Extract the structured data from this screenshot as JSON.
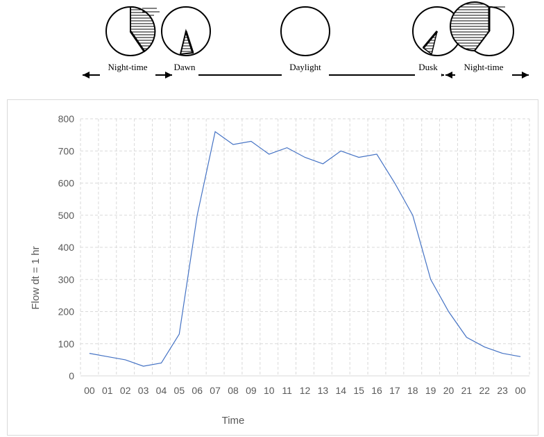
{
  "diagram": {
    "phases": [
      {
        "label": "Night-time"
      },
      {
        "label": "Dawn"
      },
      {
        "label": "Daylight"
      },
      {
        "label": "Dusk"
      },
      {
        "label": "Night-time"
      }
    ]
  },
  "chart_data": {
    "type": "line",
    "title": "",
    "xlabel": "Time",
    "ylabel": "Flow dt = 1 hr",
    "categories": [
      "00",
      "01",
      "02",
      "03",
      "04",
      "05",
      "06",
      "07",
      "08",
      "09",
      "10",
      "11",
      "12",
      "13",
      "14",
      "15",
      "16",
      "17",
      "18",
      "19",
      "20",
      "21",
      "22",
      "23",
      "00"
    ],
    "series": [
      {
        "values": [
          70,
          60,
          50,
          30,
          40,
          130,
          500,
          760,
          720,
          730,
          690,
          710,
          680,
          660,
          700,
          680,
          690,
          600,
          500,
          300,
          200,
          120,
          90,
          70,
          60
        ]
      }
    ],
    "ylim": [
      0,
      800
    ],
    "yticks": [
      0,
      100,
      200,
      300,
      400,
      500,
      600,
      700,
      800
    ],
    "grid": "dashed",
    "legend": "none",
    "colors": {
      "line": "#4472c4",
      "grid": "#d9d9d9",
      "text": "#595959"
    }
  }
}
